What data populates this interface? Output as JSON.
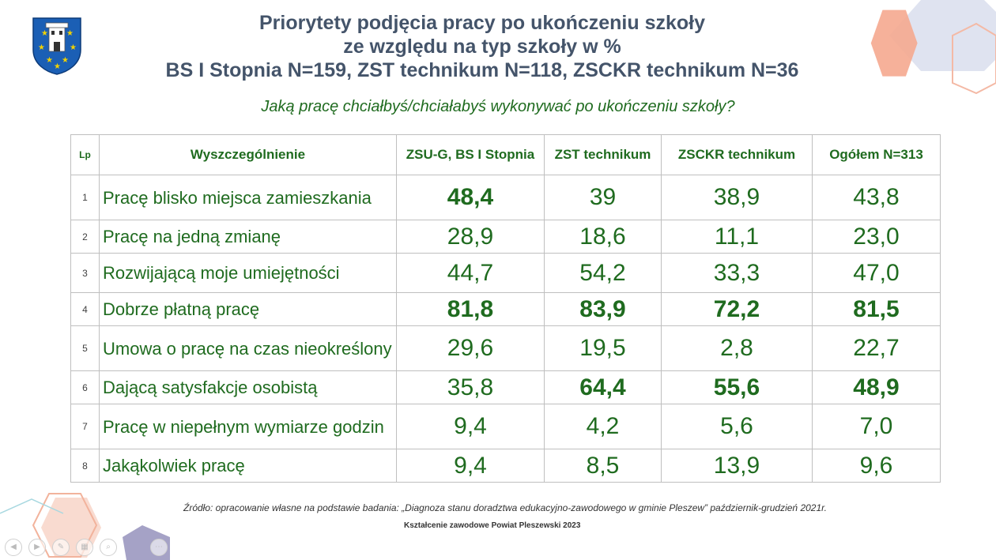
{
  "title": {
    "line1": "Priorytety podjęcia pracy po ukończeniu szkoły",
    "line2": "ze względu na typ szkoły w %",
    "line3": "BS I Stopnia N=159, ZST technikum N=118, ZSCKR technikum N=36"
  },
  "subtitle": "Jaką pracę chciałbyś/chciałabyś wykonywać po ukończeniu szkoły?",
  "table": {
    "headers": [
      "Lp",
      "Wyszczególnienie",
      "ZSU-G, BS I Stopnia",
      "ZST technikum",
      "ZSCKR technikum",
      "Ogółem N=313"
    ],
    "rows": [
      {
        "lp": "1",
        "desc": "Pracę blisko miejsca zamieszkania",
        "v1": "48,4",
        "v2": "39",
        "v3": "38,9",
        "v4": "43,8"
      },
      {
        "lp": "2",
        "desc": "Pracę na jedną zmianę",
        "v1": "28,9",
        "v2": "18,6",
        "v3": "11,1",
        "v4": "23,0"
      },
      {
        "lp": "3",
        "desc": "Rozwijającą moje umiejętności",
        "v1": "44,7",
        "v2": "54,2",
        "v3": "33,3",
        "v4": "47,0"
      },
      {
        "lp": "4",
        "desc": "Dobrze płatną pracę",
        "v1": "81,8",
        "v2": "83,9",
        "v3": "72,2",
        "v4": "81,5"
      },
      {
        "lp": "5",
        "desc": "Umowa o pracę na czas nieokreślony",
        "v1": "29,6",
        "v2": "19,5",
        "v3": "2,8",
        "v4": "22,7"
      },
      {
        "lp": "6",
        "desc": "Dającą satysfakcje osobistą",
        "v1": "35,8",
        "v2": "64,4",
        "v3": "55,6",
        "v4": "48,9"
      },
      {
        "lp": "7",
        "desc": "Pracę w niepełnym wymiarze godzin",
        "v1": "9,4",
        "v2": "4,2",
        "v3": "5,6",
        "v4": "7,0"
      },
      {
        "lp": "8",
        "desc": "Jakąkolwiek pracę",
        "v1": "9,4",
        "v2": "8,5",
        "v3": "13,9",
        "v4": "9,6"
      }
    ]
  },
  "source": "Źródło: opracowanie własne na podstawie badania: „Diagnoza stanu doradztwa edukacyjno-zawodowego w gminie Pleszew” październik-grudzień 2021r.",
  "footer": "Kształcenie zawodowe Powiat Pleszewski 2023",
  "colors": {
    "accent": "#1f6b1f",
    "title": "#44546a"
  },
  "icons": [
    "coat-of-arms-logo",
    "prev-slide-icon",
    "next-slide-icon",
    "pen-icon",
    "slides-icon",
    "zoom-icon",
    "more-icon"
  ]
}
